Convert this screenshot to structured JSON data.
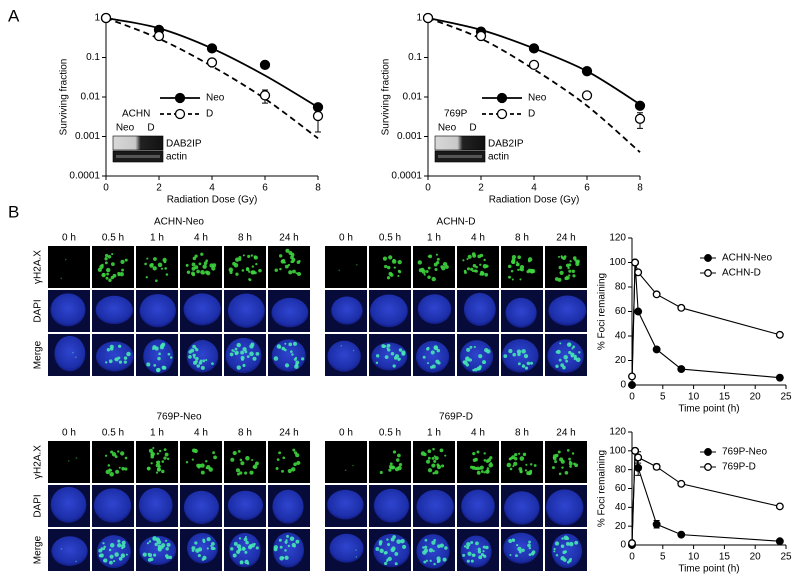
{
  "panel_labels": [
    "A",
    "B"
  ],
  "chart_data": [
    {
      "type": "line",
      "yscale": "log",
      "xlabel": "Radiation Dose (Gy)",
      "ylabel": "Surviving fraction",
      "x": [
        0,
        2,
        4,
        6,
        8
      ],
      "xlim": [
        0,
        8
      ],
      "xticks": [
        0,
        2,
        4,
        6,
        8
      ],
      "ylim": [
        0.0001,
        1
      ],
      "yticks": [
        0.0001,
        0.001,
        0.01,
        0.1,
        1
      ],
      "label": "ACHN",
      "blot": {
        "lanes": [
          "Neo",
          "D"
        ],
        "bands": [
          "DAB2IP",
          "actin"
        ]
      },
      "series": [
        {
          "name": "Neo",
          "color": "#000000",
          "marker": "filled",
          "line_style": "solid",
          "values": [
            1,
            0.5,
            0.17,
            0.065,
            0.0055
          ],
          "fit": [
            1,
            0.55,
            0.17,
            0.035,
            0.0055
          ]
        },
        {
          "name": "D",
          "color": "#000000",
          "marker": "open",
          "line_style": "dashed",
          "values": [
            1,
            0.35,
            0.075,
            0.011,
            0.0033
          ],
          "errors": [
            null,
            null,
            null,
            0.004,
            0.002
          ],
          "fit": [
            1,
            0.3,
            0.06,
            0.009,
            0.0009
          ]
        }
      ]
    },
    {
      "type": "line",
      "yscale": "log",
      "xlabel": "Radiation Dose (Gy)",
      "ylabel": "Surviving fraction",
      "x": [
        0,
        2,
        4,
        6,
        8
      ],
      "xlim": [
        0,
        8
      ],
      "xticks": [
        0,
        2,
        4,
        6,
        8
      ],
      "ylim": [
        0.0001,
        1
      ],
      "yticks": [
        0.0001,
        0.001,
        0.01,
        0.1,
        1
      ],
      "label": "769P",
      "blot": {
        "lanes": [
          "Neo",
          "D"
        ],
        "bands": [
          "DAB2IP",
          "actin"
        ]
      },
      "series": [
        {
          "name": "Neo",
          "color": "#000000",
          "marker": "filled",
          "line_style": "solid",
          "values": [
            1,
            0.45,
            0.17,
            0.045,
            0.006
          ],
          "fit": [
            1,
            0.5,
            0.17,
            0.045,
            0.0065
          ]
        },
        {
          "name": "D",
          "color": "#000000",
          "marker": "open",
          "line_style": "dashed",
          "values": [
            1,
            0.35,
            0.065,
            0.011,
            0.0028
          ],
          "errors": [
            null,
            null,
            null,
            null,
            0.0012
          ],
          "fit": [
            1,
            0.3,
            0.05,
            0.006,
            0.0004
          ]
        }
      ]
    },
    {
      "type": "line",
      "xlabel": "Time point (h)",
      "ylabel": "% Foci remaining",
      "x": [
        0,
        0.5,
        1,
        4,
        8,
        24
      ],
      "xlim": [
        0,
        25
      ],
      "xticks": [
        0,
        5,
        10,
        15,
        20,
        25
      ],
      "ylim": [
        0,
        120
      ],
      "yticks": [
        0,
        20,
        40,
        60,
        80,
        100,
        120
      ],
      "series": [
        {
          "name": "ACHN-Neo",
          "color": "#000000",
          "marker": "filled",
          "line_style": "solid",
          "values": [
            0,
            100,
            60,
            29,
            13,
            6
          ]
        },
        {
          "name": "ACHN-D",
          "color": "#000000",
          "marker": "open",
          "line_style": "solid",
          "values": [
            7,
            100,
            92,
            74,
            63,
            41
          ]
        }
      ]
    },
    {
      "type": "line",
      "xlabel": "Time point (h)",
      "ylabel": "% Foci remaining",
      "x": [
        0,
        0.5,
        1,
        4,
        8,
        24
      ],
      "xlim": [
        0,
        25
      ],
      "xticks": [
        0,
        5,
        10,
        15,
        20,
        25
      ],
      "ylim": [
        0,
        120
      ],
      "yticks": [
        0,
        20,
        40,
        60,
        80,
        100,
        120
      ],
      "series": [
        {
          "name": "769P-Neo",
          "color": "#000000",
          "marker": "filled",
          "line_style": "solid",
          "values": [
            0,
            100,
            82,
            22,
            11,
            4
          ],
          "errors": [
            null,
            null,
            8,
            4,
            null,
            null
          ]
        },
        {
          "name": "769P-D",
          "color": "#000000",
          "marker": "open",
          "line_style": "solid",
          "values": [
            2,
            100,
            93,
            83,
            65,
            41
          ],
          "errors": [
            null,
            null,
            6,
            3,
            null,
            null
          ]
        }
      ]
    }
  ],
  "microscopy": [
    {
      "title": "ACHN-Neo",
      "columns": [
        "0 h",
        "0.5 h",
        "1 h",
        "4 h",
        "8 h",
        "24 h"
      ],
      "rows": [
        "γH2A.X",
        "DAPI",
        "Merge"
      ]
    },
    {
      "title": "ACHN-D",
      "columns": [
        "0 h",
        "0.5 h",
        "1 h",
        "4 h",
        "8 h",
        "24 h"
      ],
      "rows": [
        "γH2A.X",
        "DAPI",
        "Merge"
      ]
    },
    {
      "title": "769P-Neo",
      "columns": [
        "0 h",
        "0.5 h",
        "1 h",
        "4 h",
        "8 h",
        "24 h"
      ],
      "rows": [
        "γH2A.X",
        "DAPI",
        "Merge"
      ]
    },
    {
      "title": "769P-D",
      "columns": [
        "0 h",
        "0.5 h",
        "1 h",
        "4 h",
        "8 h",
        "24 h"
      ],
      "rows": [
        "γH2A.X",
        "DAPI",
        "Merge"
      ]
    }
  ]
}
